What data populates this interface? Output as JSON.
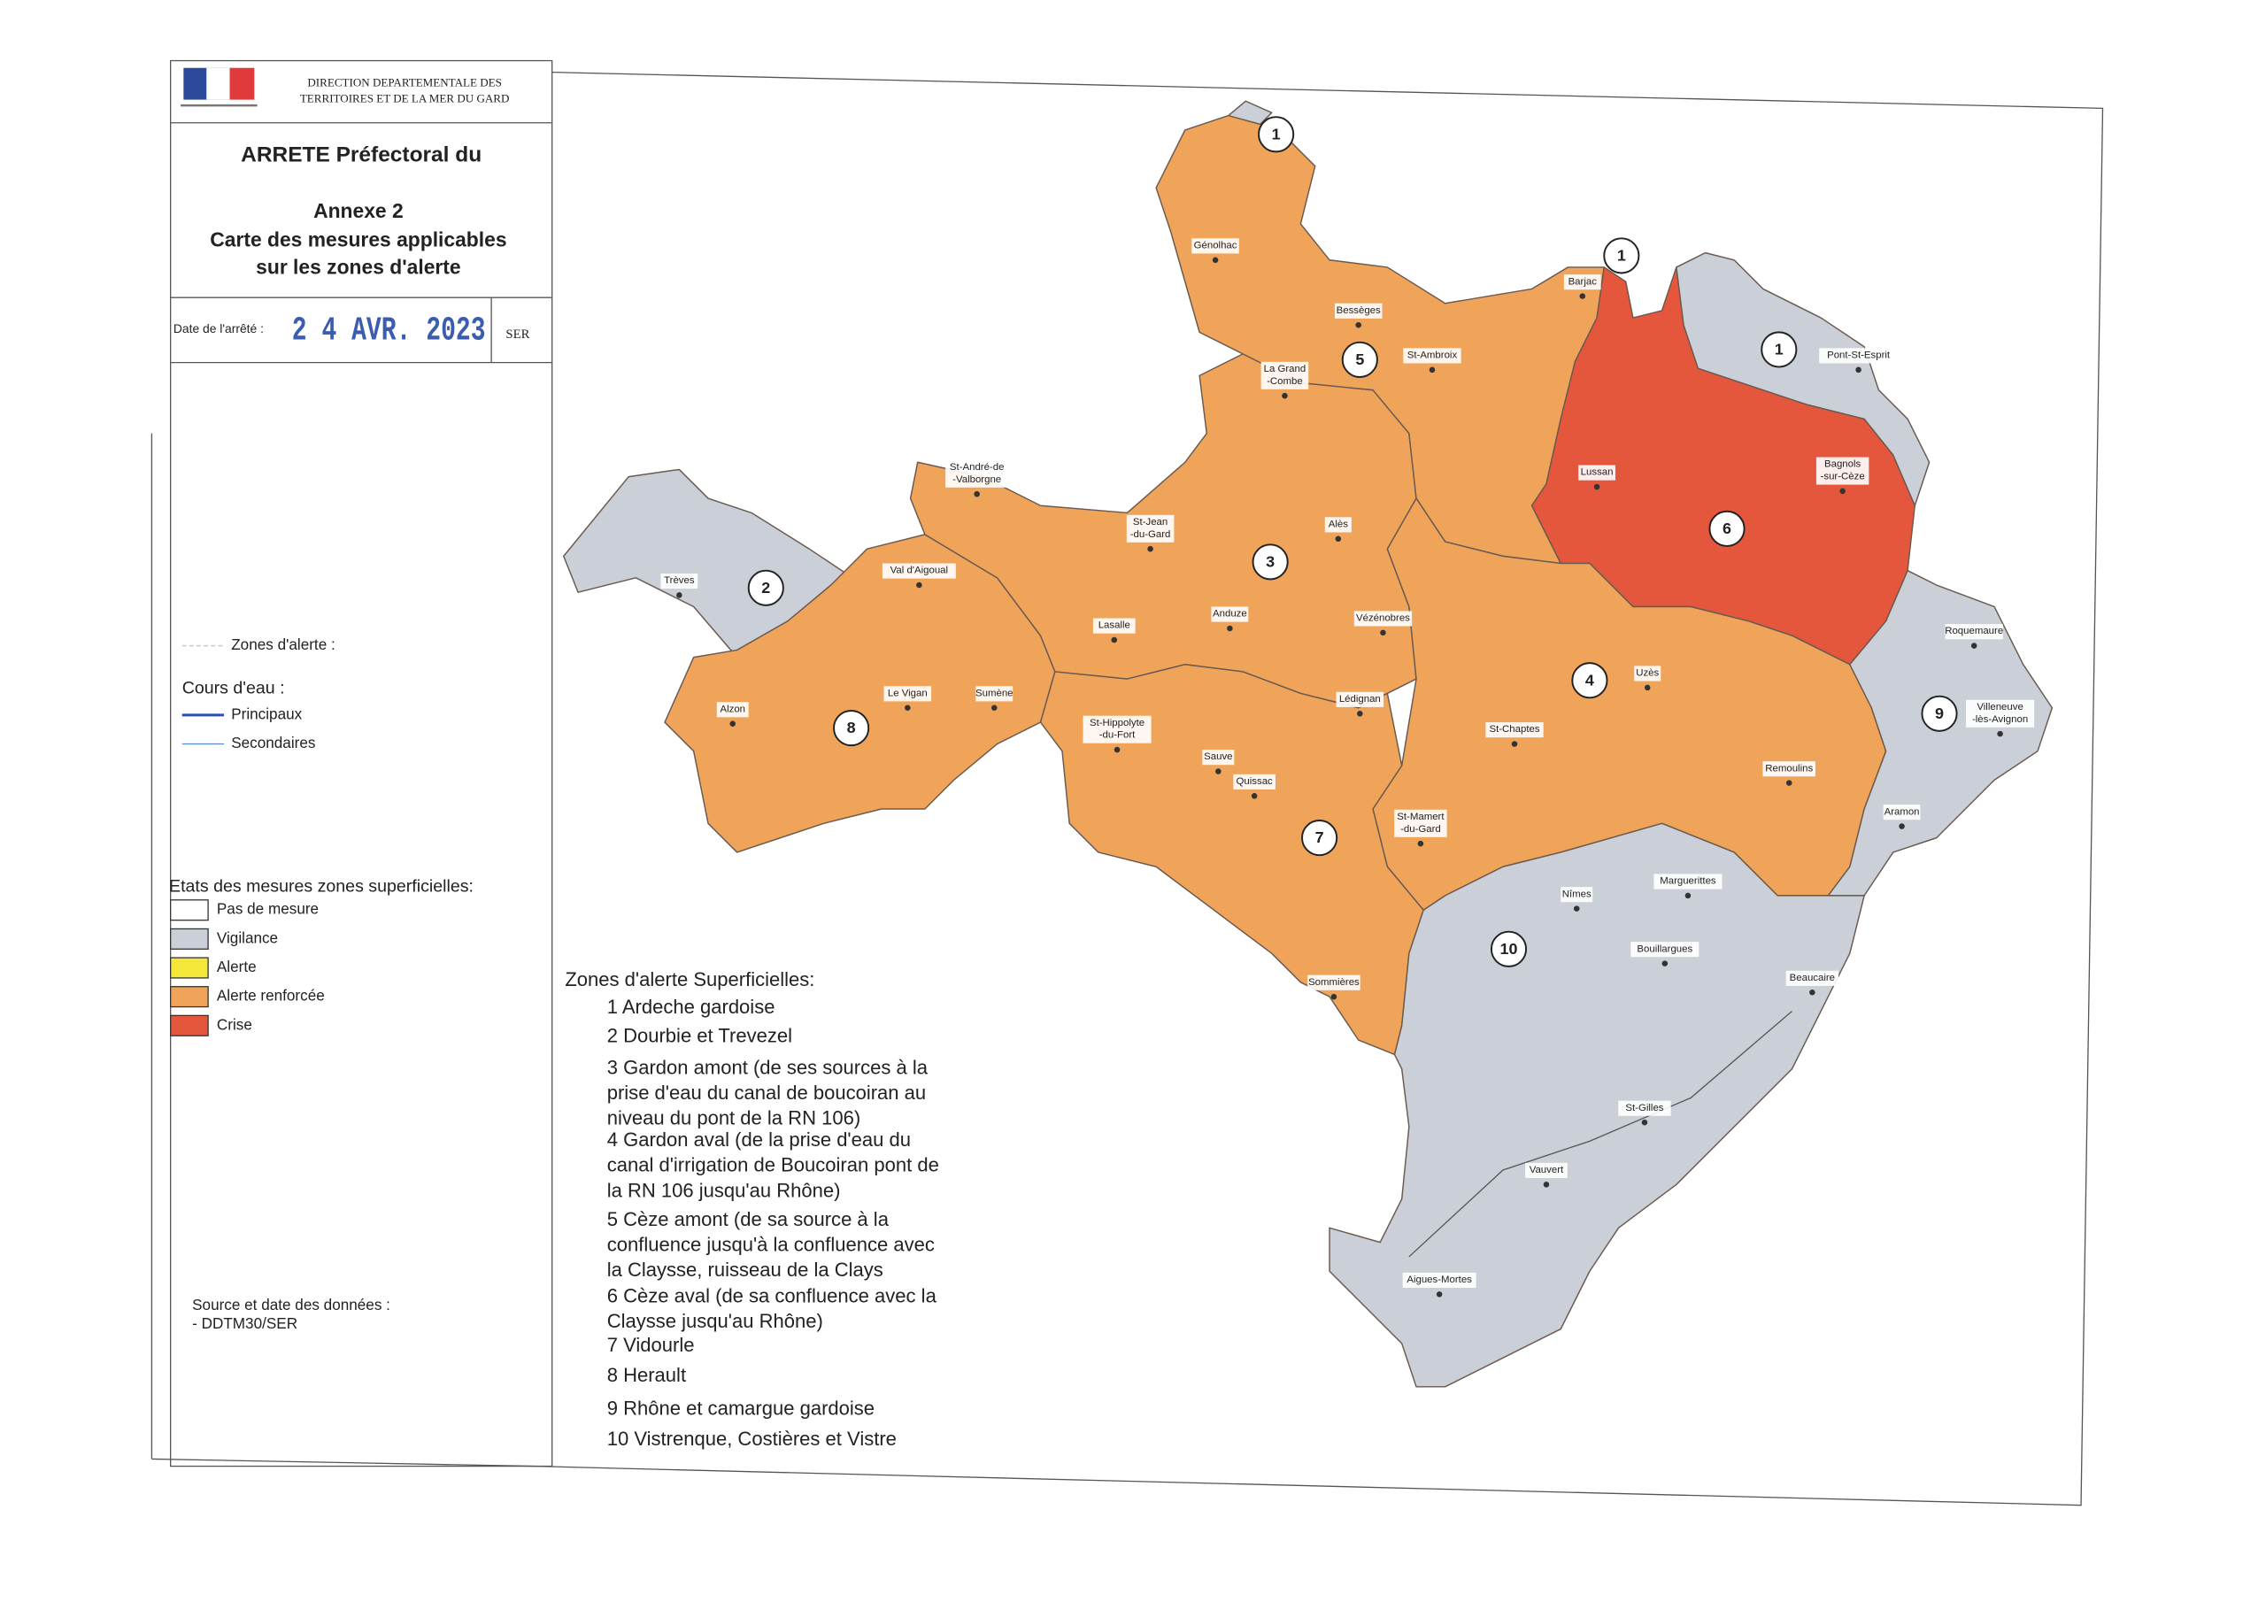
{
  "header": {
    "agency": [
      "DIRECTION DEPARTEMENTALE DES",
      "TERRITOIRES ET DE LA MER DU GARD"
    ],
    "title": "ARRETE Préfectoral du",
    "annex": [
      "Annexe 2",
      "Carte des mesures applicables",
      "sur les zones d'alerte"
    ],
    "date_label": "Date de l'arrêté :",
    "date_stamp": "2 4 AVR. 2023",
    "service": "SER"
  },
  "legend": {
    "zones_label": "Zones d'alerte :",
    "rivers_title": "Cours d'eau :",
    "rivers": [
      "Principaux",
      "Secondaires"
    ],
    "states_title": "Etats des mesures zones superficielles:",
    "states": [
      {
        "label": "Pas de mesure",
        "color": "#ffffff"
      },
      {
        "label": "Vigilance",
        "color": "#cbcfd8"
      },
      {
        "label": "Alerte",
        "color": "#f5e63a"
      },
      {
        "label": "Alerte renforcée",
        "color": "#f0a45a"
      },
      {
        "label": "Crise",
        "color": "#e4573c"
      }
    ]
  },
  "source": [
    "Source et date des données :",
    "- DDTM30/SER"
  ],
  "zones_list": {
    "title": "Zones d'alerte Superficielles:",
    "items": [
      [
        "1 Ardeche gardoise"
      ],
      [
        "2 Dourbie et Trevezel"
      ],
      [
        "3 Gardon amont (de ses sources à la",
        "prise d'eau du canal de boucoiran au",
        "niveau du pont de la RN 106)"
      ],
      [
        "4 Gardon aval (de la prise d'eau du",
        "canal d'irrigation de Boucoiran pont de",
        "la RN 106 jusqu'au Rhône)"
      ],
      [
        "5 Cèze amont (de sa source à la",
        "confluence jusqu'à la confluence avec",
        " la Claysse, ruisseau de la Clays"
      ],
      [
        "6 Cèze aval (de sa confluence avec la",
        "Claysse jusqu'au Rhône)"
      ],
      [
        "7 Vidourle"
      ],
      [
        "8 Herault"
      ],
      [
        "9 Rhône et camargue gardoise"
      ],
      [
        "10 Vistrenque, Costières et Vistre"
      ]
    ]
  },
  "map": {
    "zone_markers": [
      "1",
      "1",
      "1",
      "2",
      "3",
      "4",
      "5",
      "6",
      "7",
      "8",
      "9",
      "10"
    ],
    "towns": [
      [
        "Génolhac"
      ],
      [
        "Bessèges"
      ],
      [
        "St-Ambroix"
      ],
      [
        "Barjac"
      ],
      [
        "La Grand",
        "-Combe"
      ],
      [
        "St-André-de",
        "-Valborgne"
      ],
      [
        "Alès"
      ],
      [
        "St-Jean",
        "-du-Gard"
      ],
      [
        "Lasalle"
      ],
      [
        "Anduze"
      ],
      [
        "Vézénobres"
      ],
      [
        "Trèves"
      ],
      [
        "Val d'Aigoual"
      ],
      [
        "Alzon"
      ],
      [
        "Le Vigan"
      ],
      [
        "Sumène"
      ],
      [
        "Lédignan"
      ],
      [
        "St-Hippolyte",
        "-du-Fort"
      ],
      [
        "Sauve"
      ],
      [
        "Quissac"
      ],
      [
        "St-Chaptes"
      ],
      [
        "Uzès"
      ],
      [
        "Lussan"
      ],
      [
        "Bagnols",
        "-sur-Cèze"
      ],
      [
        "Pont-St-Esprit"
      ],
      [
        "Roquemaure"
      ],
      [
        "Villeneuve",
        "-lès-Avignon"
      ],
      [
        "Remoulins"
      ],
      [
        "Aramon"
      ],
      [
        "St-Mamert",
        "-du-Gard"
      ],
      [
        "Sommières"
      ],
      [
        "Nîmes"
      ],
      [
        "Marguerittes"
      ],
      [
        "Bouillargues"
      ],
      [
        "Beaucaire"
      ],
      [
        "St-Gilles"
      ],
      [
        "Vauvert"
      ],
      [
        "Aigues-Mortes"
      ]
    ]
  }
}
